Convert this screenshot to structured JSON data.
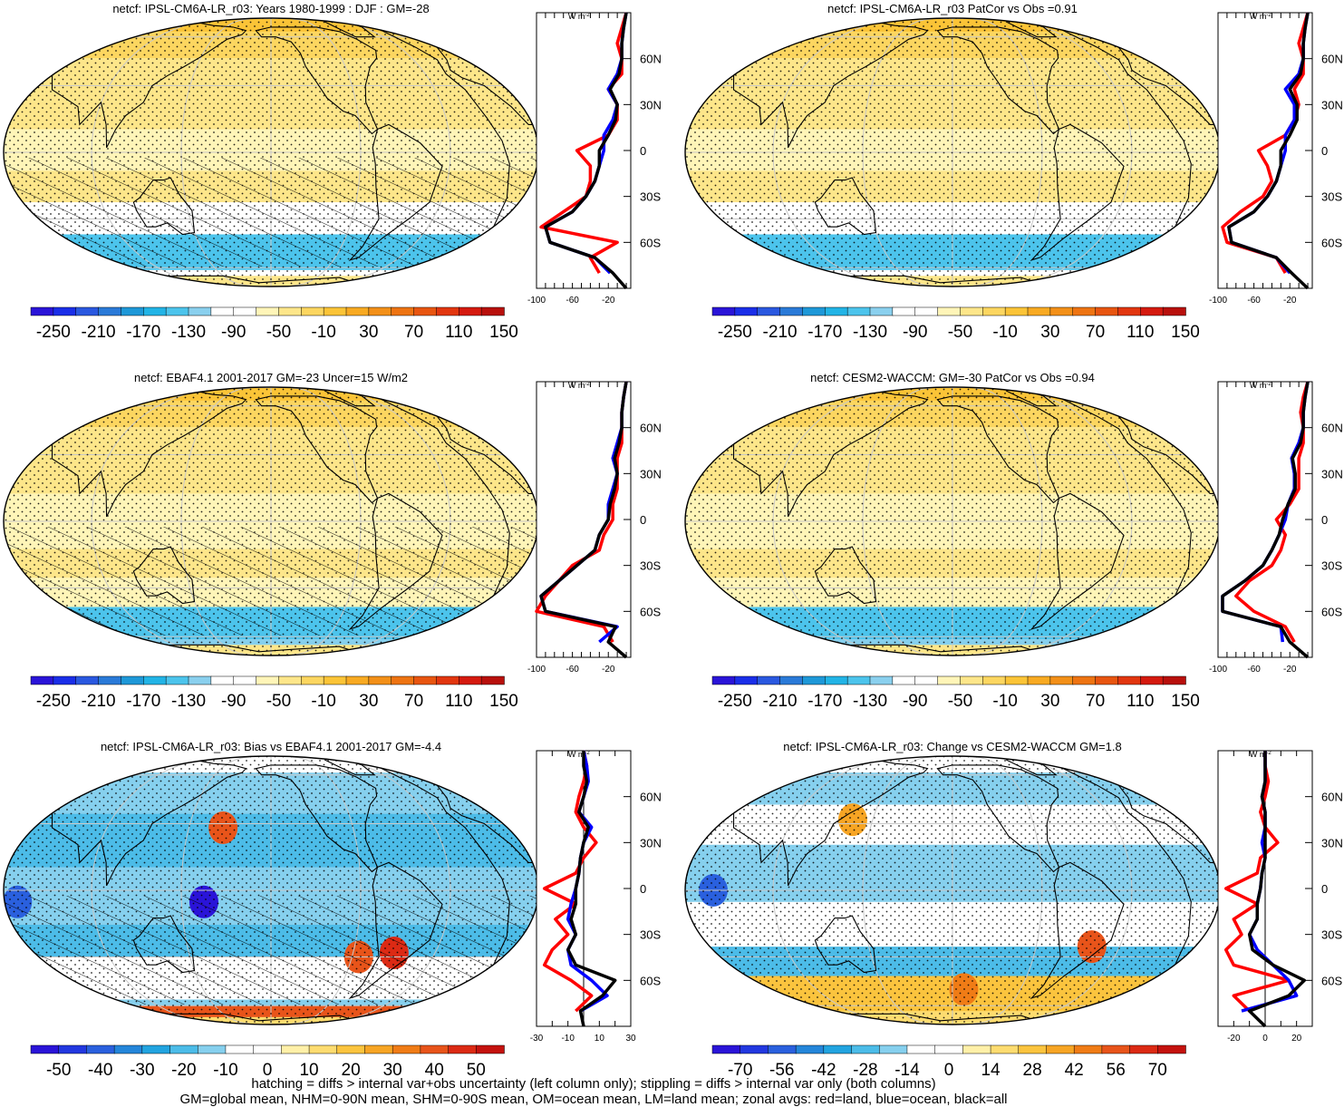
{
  "chart_data": [
    {
      "type": "heatmap",
      "title": "netcf: IPSL-CM6A-LR_r03: Years 1980-1999 : DJF : GM=-28",
      "colorbar": {
        "ticks": [
          "-250",
          "-210",
          "-170",
          "-130",
          "-90",
          "-50",
          "-10",
          "30",
          "70",
          "110",
          "150"
        ],
        "palette": "sw"
      },
      "hatching": true,
      "zonal": {
        "unit": "W m-2",
        "y_ticks": [
          "60N",
          "30N",
          "0",
          "30S",
          "60S"
        ],
        "x_ticks": [
          "-100",
          "-60",
          "-20"
        ],
        "xlim": [
          -100,
          5
        ],
        "lat": [
          -90,
          -80,
          -70,
          -60,
          -50,
          -40,
          -30,
          -20,
          -10,
          0,
          10,
          20,
          30,
          40,
          50,
          60,
          70,
          80,
          90
        ],
        "series": [
          {
            "name": "land",
            "color": "#ff0000",
            "values": [
              null,
              -30,
              -40,
              -10,
              -95,
              -70,
              -45,
              -40,
              -40,
              -55,
              -20,
              -10,
              -10,
              -20,
              -5,
              -5,
              -10,
              -5,
              0
            ]
          },
          {
            "name": "ocean",
            "color": "#0000ff",
            "values": [
              null,
              -18,
              -35,
              -85,
              -90,
              -60,
              -45,
              -35,
              -30,
              -25,
              -25,
              -15,
              -10,
              -20,
              -10,
              -5,
              -5,
              -3,
              0
            ]
          },
          {
            "name": "all",
            "color": "#000000",
            "values": [
              0,
              -15,
              -35,
              -85,
              -90,
              -60,
              -45,
              -35,
              -30,
              -30,
              -20,
              -12,
              -10,
              -18,
              -8,
              -5,
              -5,
              -3,
              0
            ]
          }
        ]
      }
    },
    {
      "type": "heatmap",
      "title": "netcf: IPSL-CM6A-LR_r03 PatCor vs Obs =0.91",
      "colorbar": {
        "ticks": [
          "-250",
          "-210",
          "-170",
          "-130",
          "-90",
          "-50",
          "-10",
          "30",
          "70",
          "110",
          "150"
        ],
        "palette": "sw"
      },
      "hatching": false,
      "zonal": {
        "unit": "W m-2",
        "y_ticks": [
          "60N",
          "30N",
          "0",
          "30S",
          "60S"
        ],
        "x_ticks": [
          "-100",
          "-60",
          "-20"
        ],
        "xlim": [
          -100,
          5
        ],
        "lat": [
          -90,
          -80,
          -70,
          -60,
          -50,
          -40,
          -30,
          -20,
          -10,
          0,
          10,
          20,
          30,
          40,
          50,
          60,
          70,
          80,
          90
        ],
        "series": [
          {
            "name": "land",
            "color": "#ff0000",
            "values": [
              null,
              -25,
              -35,
              -90,
              -95,
              -75,
              -50,
              -40,
              -45,
              -55,
              -25,
              -15,
              -10,
              -15,
              -5,
              -5,
              -10,
              -5,
              0
            ]
          },
          {
            "name": "ocean",
            "color": "#0000ff",
            "values": [
              null,
              -20,
              -35,
              -85,
              -88,
              -60,
              -45,
              -35,
              -30,
              -25,
              -25,
              -15,
              -15,
              -25,
              -10,
              -5,
              -5,
              -3,
              0
            ]
          },
          {
            "name": "all",
            "color": "#000000",
            "values": [
              0,
              -18,
              -35,
              -85,
              -88,
              -60,
              -45,
              -35,
              -30,
              -30,
              -20,
              -12,
              -12,
              -20,
              -8,
              -5,
              -5,
              -3,
              0
            ]
          }
        ]
      }
    },
    {
      "type": "heatmap",
      "title": "netcf: EBAF4.1 2001-2017 GM=-23 Uncer=15 W/m2",
      "colorbar": {
        "ticks": [
          "-250",
          "-210",
          "-170",
          "-130",
          "-90",
          "-50",
          "-10",
          "30",
          "70",
          "110",
          "150"
        ],
        "palette": "sw"
      },
      "hatching": true,
      "zonal": {
        "unit": "W m-2",
        "y_ticks": [
          "60N",
          "30N",
          "0",
          "30S",
          "60S"
        ],
        "x_ticks": [
          "-100",
          "-60",
          "-20"
        ],
        "xlim": [
          -100,
          5
        ],
        "lat": [
          -90,
          -80,
          -70,
          -60,
          -50,
          -40,
          -30,
          -20,
          -10,
          0,
          10,
          20,
          30,
          40,
          50,
          60,
          70,
          80,
          90
        ],
        "series": [
          {
            "name": "land",
            "color": "#ff0000",
            "values": [
              null,
              -15,
              -25,
              -100,
              -90,
              -75,
              -60,
              -30,
              -25,
              -15,
              -15,
              -10,
              -10,
              -10,
              -5,
              -5,
              -5,
              -3,
              0
            ]
          },
          {
            "name": "ocean",
            "color": "#0000ff",
            "values": [
              null,
              -30,
              -10,
              -90,
              -95,
              -75,
              -55,
              -35,
              -30,
              -20,
              -20,
              -15,
              -10,
              -15,
              -10,
              -5,
              -5,
              -3,
              0
            ]
          },
          {
            "name": "all",
            "color": "#000000",
            "values": [
              0,
              -20,
              -12,
              -90,
              -95,
              -75,
              -55,
              -35,
              -30,
              -20,
              -18,
              -13,
              -10,
              -13,
              -8,
              -5,
              -5,
              -3,
              0
            ]
          }
        ]
      }
    },
    {
      "type": "heatmap",
      "title": "netcf: CESM2-WACCM: GM=-30 PatCor vs Obs =0.94",
      "colorbar": {
        "ticks": [
          "-250",
          "-210",
          "-170",
          "-130",
          "-90",
          "-50",
          "-10",
          "30",
          "70",
          "110",
          "150"
        ],
        "palette": "sw"
      },
      "hatching": false,
      "zonal": {
        "unit": "W m-2",
        "y_ticks": [
          "60N",
          "30N",
          "0",
          "30S",
          "60S"
        ],
        "x_ticks": [
          "-100",
          "-60",
          "-20"
        ],
        "xlim": [
          -100,
          5
        ],
        "lat": [
          -90,
          -80,
          -70,
          -60,
          -50,
          -40,
          -30,
          -20,
          -10,
          0,
          10,
          20,
          30,
          40,
          50,
          60,
          70,
          80,
          90
        ],
        "series": [
          {
            "name": "land",
            "color": "#ff0000",
            "values": [
              null,
              -15,
              -25,
              -60,
              -80,
              -65,
              -40,
              -30,
              -25,
              -35,
              -20,
              -10,
              -10,
              -10,
              -5,
              -5,
              -8,
              -5,
              0
            ]
          },
          {
            "name": "ocean",
            "color": "#0000ff",
            "values": [
              null,
              -28,
              -30,
              -95,
              -95,
              -70,
              -50,
              -40,
              -32,
              -25,
              -22,
              -15,
              -15,
              -18,
              -10,
              -5,
              -5,
              -3,
              0
            ]
          },
          {
            "name": "all",
            "color": "#000000",
            "values": [
              0,
              -20,
              -30,
              -95,
              -95,
              -70,
              -50,
              -40,
              -32,
              -28,
              -22,
              -14,
              -14,
              -17,
              -8,
              -5,
              -5,
              -3,
              0
            ]
          }
        ]
      }
    },
    {
      "type": "heatmap",
      "title": "netcf: IPSL-CM6A-LR_r03: Bias vs EBAF4.1 2001-2017 GM=-4.4",
      "colorbar": {
        "ticks": [
          "-50",
          "-40",
          "-30",
          "-20",
          "-10",
          "0",
          "10",
          "20",
          "30",
          "40",
          "50"
        ],
        "palette": "diff"
      },
      "hatching": true,
      "zonal": {
        "unit": "W m-2",
        "y_ticks": [
          "60N",
          "30N",
          "0",
          "30S",
          "60S"
        ],
        "x_ticks": [
          "-30",
          "-10",
          "10",
          "30"
        ],
        "xlim": [
          -30,
          30
        ],
        "zero_line": true,
        "lat": [
          -90,
          -80,
          -70,
          -60,
          -50,
          -40,
          -30,
          -20,
          -10,
          0,
          10,
          20,
          30,
          40,
          50,
          60,
          70,
          80,
          90
        ],
        "series": [
          {
            "name": "land",
            "color": "#ff0000",
            "values": [
              null,
              -5,
              5,
              -8,
              -25,
              -20,
              -10,
              -18,
              -5,
              -25,
              -5,
              0,
              8,
              0,
              -5,
              -3,
              0,
              2,
              0
            ]
          },
          {
            "name": "ocean",
            "color": "#0000ff",
            "values": [
              null,
              -2,
              15,
              5,
              -8,
              -10,
              -5,
              -10,
              -8,
              -5,
              -3,
              -2,
              0,
              5,
              -3,
              0,
              3,
              2,
              0
            ]
          },
          {
            "name": "all",
            "color": "#000000",
            "values": [
              0,
              -2,
              12,
              20,
              -5,
              -10,
              -5,
              -8,
              -5,
              -5,
              -3,
              -2,
              0,
              3,
              -3,
              0,
              2,
              0,
              0
            ]
          }
        ]
      }
    },
    {
      "type": "heatmap",
      "title": "netcf: IPSL-CM6A-LR_r03: Change vs CESM2-WACCM GM=1.8",
      "colorbar": {
        "ticks": [
          "-70",
          "-56",
          "-42",
          "-28",
          "-14",
          "0",
          "14",
          "28",
          "42",
          "56",
          "70"
        ],
        "palette": "diff"
      },
      "hatching": false,
      "zonal": {
        "unit": "W m-2",
        "y_ticks": [
          "60N",
          "30N",
          "0",
          "30S",
          "60S"
        ],
        "x_ticks": [
          "-20",
          "0",
          "20"
        ],
        "xlim": [
          -30,
          30
        ],
        "zero_line": true,
        "lat": [
          -90,
          -80,
          -70,
          -60,
          -50,
          -40,
          -30,
          -20,
          -10,
          0,
          10,
          20,
          30,
          40,
          50,
          60,
          70,
          80,
          90
        ],
        "series": [
          {
            "name": "land",
            "color": "#ff0000",
            "values": [
              null,
              -10,
              -20,
              15,
              -20,
              -25,
              -15,
              -20,
              -5,
              -25,
              -5,
              -3,
              8,
              0,
              -3,
              0,
              2,
              0,
              0
            ]
          },
          {
            "name": "ocean",
            "color": "#0000ff",
            "values": [
              null,
              -15,
              20,
              15,
              5,
              -5,
              -10,
              -5,
              -5,
              -3,
              -2,
              0,
              -2,
              0,
              0,
              -2,
              0,
              0,
              0
            ]
          },
          {
            "name": "all",
            "color": "#000000",
            "values": [
              0,
              -10,
              15,
              25,
              5,
              -8,
              -10,
              -5,
              -5,
              -3,
              -2,
              0,
              0,
              0,
              0,
              -2,
              0,
              0,
              0
            ]
          }
        ]
      }
    }
  ],
  "caption": {
    "line1": "hatching = diffs > internal var+obs uncertainty (left column only); stippling = diffs > internal var only (both columns)",
    "line2": "GM=global mean, NHM=0-90N mean, SHM=0-90S mean, OM=ocean mean, LM=land mean; zonal avgs: red=land, blue=ocean, black=all"
  }
}
